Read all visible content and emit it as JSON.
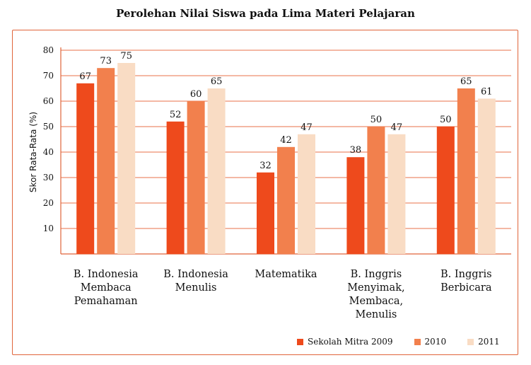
{
  "chart_data": {
    "type": "bar",
    "title": "Perolehan Nilai Siswa pada Lima Materi Pelajaran",
    "ylabel": "Skor Rata-Rata (%)",
    "xlabel": "",
    "ylim": [
      0,
      80
    ],
    "yticks": [
      10,
      20,
      30,
      40,
      50,
      60,
      70,
      80
    ],
    "grid": true,
    "legend_position": "bottom-right",
    "categories": [
      [
        "B. Indonesia",
        "Membaca",
        "Pemahaman"
      ],
      [
        "B. Indonesia",
        "Menulis"
      ],
      [
        "Matematika"
      ],
      [
        "B. Inggris",
        "Menyimak,",
        "Membaca,",
        "Menulis"
      ],
      [
        "B. Inggris",
        "Berbicara"
      ]
    ],
    "series": [
      {
        "name": "Sekolah Mitra 2009",
        "color": "#ee4a1c",
        "values": [
          67,
          52,
          32,
          38,
          50
        ]
      },
      {
        "name": "2010",
        "color": "#f2804d",
        "values": [
          73,
          60,
          42,
          50,
          65
        ]
      },
      {
        "name": "2011",
        "color": "#f9dcc4",
        "values": [
          75,
          65,
          47,
          47,
          61
        ]
      }
    ]
  },
  "colors": {
    "grid": "#e8704a",
    "axis": "#e0643a",
    "label_text": "#111111"
  }
}
